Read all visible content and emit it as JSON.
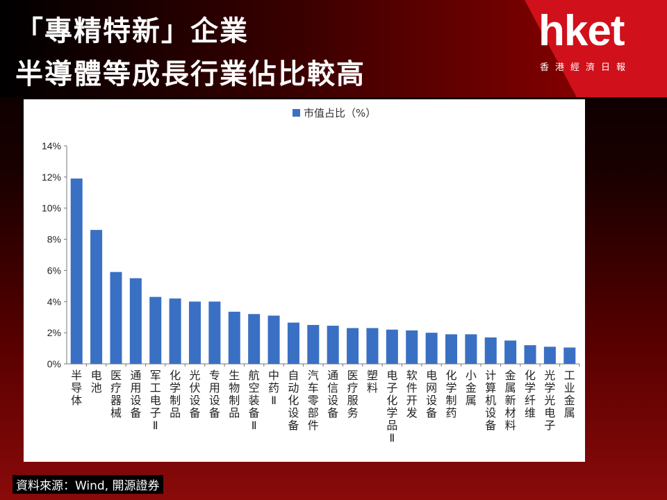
{
  "header": {
    "title_line1": "「專精特新」企業",
    "title_line2": "半導體等成長行業佔比較高"
  },
  "logo": {
    "word": "hket",
    "sub": "香港經濟日報"
  },
  "source": "資料來源：Wind, 開源證券",
  "colors": {
    "bar": "#3a70c4",
    "accent": "#d0101a"
  },
  "chart_data": {
    "type": "bar",
    "legend": "市值占比（%）",
    "legend_position": "top",
    "grid": false,
    "ylim": [
      0,
      14
    ],
    "yticks": [
      "0%",
      "2%",
      "4%",
      "6%",
      "8%",
      "10%",
      "12%",
      "14%"
    ],
    "categories": [
      "半导体",
      "电池",
      "医疗器械",
      "通用设备",
      "军工电子Ⅱ",
      "化学制品",
      "光伏设备",
      "专用设备",
      "生物制品",
      "航空装备Ⅱ",
      "中药Ⅱ",
      "自动化设备",
      "汽车零部件",
      "通信设备",
      "医疗服务",
      "塑料",
      "电子化学品Ⅱ",
      "软件开发",
      "电网设备",
      "化学制药",
      "小金属",
      "计算机设备",
      "金属新材料",
      "化学纤维",
      "光学光电子",
      "工业金属"
    ],
    "values": [
      11.9,
      8.6,
      5.9,
      5.5,
      4.3,
      4.2,
      4.0,
      4.0,
      3.35,
      3.2,
      3.1,
      2.65,
      2.5,
      2.45,
      2.3,
      2.3,
      2.2,
      2.15,
      2.0,
      1.9,
      1.9,
      1.7,
      1.5,
      1.2,
      1.1,
      1.05
    ]
  }
}
